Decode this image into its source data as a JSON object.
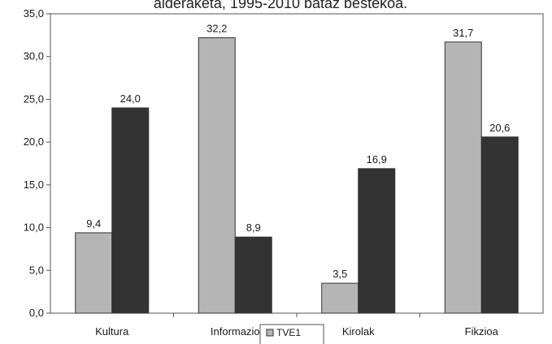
{
  "chart_data": {
    "type": "bar",
    "title": "alderaketa, 1995-2010 bataz bestekoa.",
    "categories": [
      "Kultura",
      "Informazio",
      "Kirolak",
      "Fikzioa"
    ],
    "series": [
      {
        "name": "TVE1",
        "values": [
          9.4,
          32.2,
          3.5,
          31.7
        ],
        "value_labels": [
          "9,4",
          "32,2",
          "3,5",
          "31,7"
        ],
        "color": "#b5b5b5"
      },
      {
        "values": [
          24.0,
          8.9,
          16.9,
          20.6
        ],
        "value_labels": [
          "24,0",
          "8,9",
          "16,9",
          "20,6"
        ],
        "color": "#333333"
      }
    ],
    "ylim": [
      0,
      35
    ],
    "yticks": [
      0,
      5,
      10,
      15,
      20,
      25,
      30,
      35
    ],
    "ytick_labels": [
      "0,0",
      "5,0",
      "10,0",
      "15,0",
      "20,0",
      "25,0",
      "30,0",
      "35,0"
    ],
    "xlabel": "",
    "ylabel": "",
    "grid": false,
    "legend_position": "bottom-center"
  }
}
